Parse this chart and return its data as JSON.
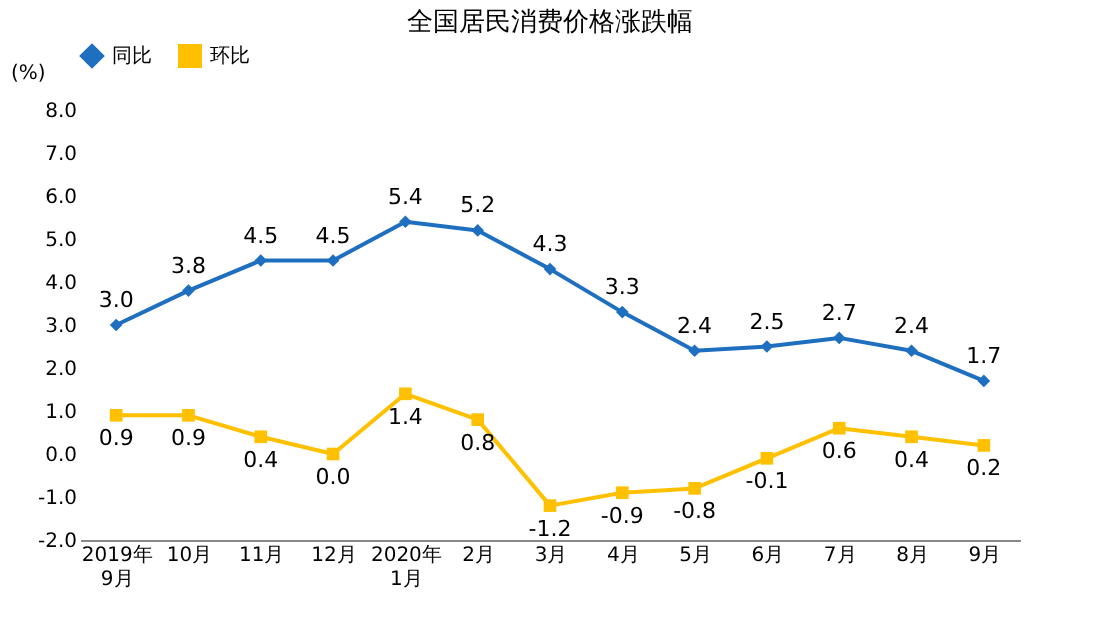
{
  "chart_data": {
    "type": "line",
    "title": "全国居民消费价格涨跌幅",
    "ylabel": "(%)",
    "categories": [
      "2019年\n9月",
      "10月",
      "11月",
      "12月",
      "2020年\n1月",
      "2月",
      "3月",
      "4月",
      "5月",
      "6月",
      "7月",
      "8月",
      "9月"
    ],
    "series": [
      {
        "name": "同比",
        "color": "#1f6fc0",
        "marker": "diamond",
        "line_style": "solid",
        "values": [
          3.0,
          3.8,
          4.5,
          4.5,
          5.4,
          5.2,
          4.3,
          3.3,
          2.4,
          2.5,
          2.7,
          2.4,
          1.7
        ],
        "value_labels": [
          "3.0",
          "3.8",
          "4.5",
          "4.5",
          "5.4",
          "5.2",
          "4.3",
          "3.3",
          "2.4",
          "2.5",
          "2.7",
          "2.4",
          "1.7"
        ]
      },
      {
        "name": "环比",
        "color": "#ffc000",
        "marker": "square",
        "line_style": "solid",
        "values": [
          0.9,
          0.9,
          0.4,
          0.0,
          1.4,
          0.8,
          -1.2,
          -0.9,
          -0.8,
          -0.1,
          0.6,
          0.4,
          0.2
        ],
        "value_labels": [
          "0.9",
          "0.9",
          "0.4",
          "0.0",
          "1.4",
          "0.8",
          "-1.2",
          "-0.9",
          "-0.8",
          "-0.1",
          "0.6",
          "0.4",
          "0.2"
        ]
      }
    ],
    "ylim": [
      -2,
      8
    ],
    "yticks": [
      {
        "value": -2,
        "label": "-2.0"
      },
      {
        "value": -1,
        "label": "-1.0"
      },
      {
        "value": 0,
        "label": "0.0"
      },
      {
        "value": 1,
        "label": "1.0"
      },
      {
        "value": 2,
        "label": "2.0"
      },
      {
        "value": 3,
        "label": "3.0"
      },
      {
        "value": 4,
        "label": "4.0"
      },
      {
        "value": 5,
        "label": "5.0"
      },
      {
        "value": 6,
        "label": "6.0"
      },
      {
        "value": 7,
        "label": "7.0"
      },
      {
        "value": 8,
        "label": "8.0"
      }
    ],
    "legend": "top",
    "grid": false
  }
}
